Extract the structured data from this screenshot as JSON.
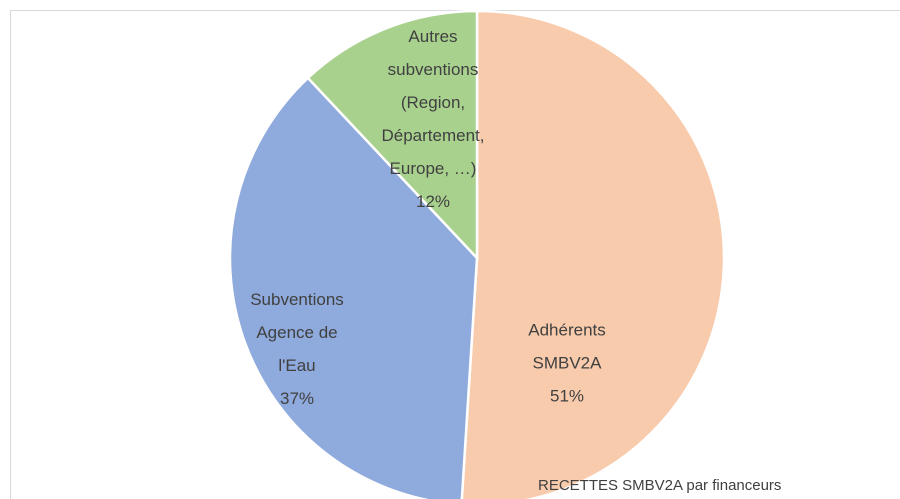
{
  "chart_data": {
    "type": "pie",
    "title": "RECETTES SMBV2A par financeurs",
    "categories": [
      [
        "Adhérents",
        "SMBV2A"
      ],
      [
        "Subventions",
        "Agence de",
        "l'Eau"
      ],
      [
        "Autres",
        "subventions",
        "(Region,",
        "Département,",
        "Europe, …)"
      ]
    ],
    "values": [
      51,
      37,
      12
    ],
    "value_labels": [
      "51%",
      "37%",
      "12%"
    ],
    "colors": [
      "#f8cbad",
      "#8faadc",
      "#a9d18e"
    ]
  }
}
